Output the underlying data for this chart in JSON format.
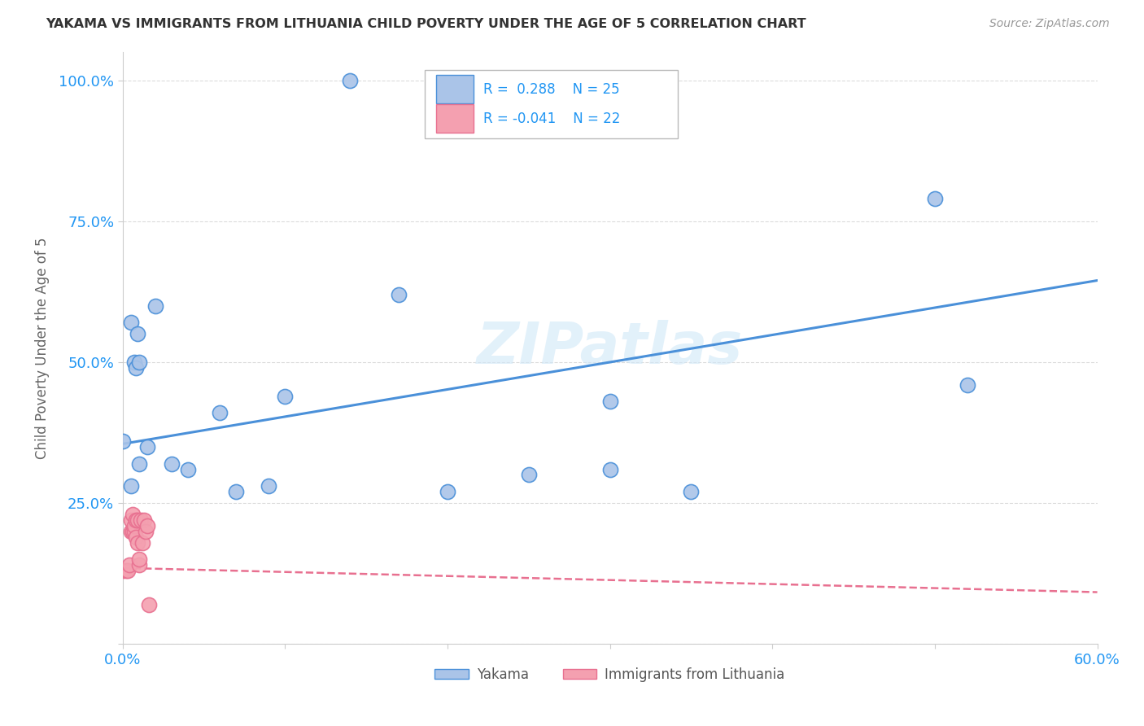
{
  "title": "YAKAMA VS IMMIGRANTS FROM LITHUANIA CHILD POVERTY UNDER THE AGE OF 5 CORRELATION CHART",
  "source": "Source: ZipAtlas.com",
  "ylabel_label": "Child Poverty Under the Age of 5",
  "xlim": [
    0.0,
    0.6
  ],
  "ylim": [
    0.0,
    1.05
  ],
  "xticks": [
    0.0,
    0.1,
    0.2,
    0.3,
    0.4,
    0.5,
    0.6
  ],
  "xticklabels": [
    "0.0%",
    "",
    "",
    "",
    "",
    "",
    "60.0%"
  ],
  "yticks": [
    0.0,
    0.25,
    0.5,
    0.75,
    1.0
  ],
  "yticklabels": [
    "",
    "25.0%",
    "50.0%",
    "75.0%",
    "100.0%"
  ],
  "legend_r_yakama": "R =  0.288",
  "legend_n_yakama": "N = 25",
  "legend_r_lithuania": "R = -0.041",
  "legend_n_lithuania": "N = 22",
  "yakama_color": "#aac4e8",
  "lithuania_color": "#f4a0b0",
  "trend_yakama_color": "#4a90d9",
  "trend_lithuania_color": "#e87090",
  "watermark": "ZIPatlas",
  "background_color": "#ffffff",
  "grid_color": "#cccccc",
  "yakama_x": [
    0.0,
    0.005,
    0.007,
    0.008,
    0.009,
    0.01,
    0.01,
    0.02,
    0.03,
    0.04,
    0.06,
    0.09,
    0.1,
    0.14,
    0.17,
    0.2,
    0.25,
    0.3,
    0.35,
    0.5,
    0.52,
    0.005,
    0.015,
    0.07,
    0.3
  ],
  "yakama_y": [
    0.36,
    0.57,
    0.5,
    0.49,
    0.55,
    0.5,
    0.32,
    0.6,
    0.32,
    0.31,
    0.41,
    0.28,
    0.44,
    1.0,
    0.62,
    0.27,
    0.3,
    0.43,
    0.27,
    0.79,
    0.46,
    0.28,
    0.35,
    0.27,
    0.31
  ],
  "lithuania_x": [
    0.0,
    0.002,
    0.003,
    0.004,
    0.005,
    0.005,
    0.006,
    0.006,
    0.007,
    0.007,
    0.008,
    0.008,
    0.009,
    0.009,
    0.01,
    0.01,
    0.011,
    0.012,
    0.013,
    0.014,
    0.015,
    0.016
  ],
  "lithuania_y": [
    0.13,
    0.13,
    0.13,
    0.14,
    0.2,
    0.22,
    0.2,
    0.23,
    0.2,
    0.21,
    0.19,
    0.22,
    0.18,
    0.22,
    0.14,
    0.15,
    0.22,
    0.18,
    0.22,
    0.2,
    0.21,
    0.07
  ]
}
